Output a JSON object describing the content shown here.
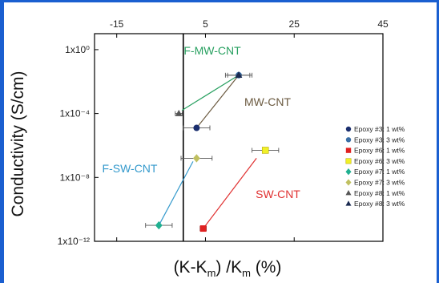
{
  "chart_data": {
    "type": "scatter",
    "xlabel": "(K-K",
    "xlabel_sub": "m",
    "xlabel_mid": ") /K",
    "xlabel_sub2": "m",
    "xlabel_end": " (%)",
    "ylabel": "Conductivity (S/cm)",
    "x_ticks": [
      -15,
      5,
      25,
      45
    ],
    "x_tick_labels": [
      "-15",
      "5",
      "25",
      "45"
    ],
    "y_ticks": [
      0,
      -4,
      -8,
      -12
    ],
    "y_tick_labels": [
      "1x10⁰",
      "1x10⁻⁴",
      "1x10⁻⁸",
      "1x10⁻¹²"
    ],
    "xlim": [
      -20,
      45
    ],
    "ylim_log10": [
      -12,
      1
    ],
    "zero_line_x": 0,
    "series": [
      {
        "name": "Epoxy #3: 1 wt%",
        "marker": "circle",
        "color": "#1a2e6e",
        "x": 3,
        "y_log10": -4.9,
        "xerr": 3
      },
      {
        "name": "Epoxy #3: 3 wt%",
        "marker": "circle",
        "color": "#3a6ea5",
        "x": 12.5,
        "y_log10": -1.6,
        "xerr": 3
      },
      {
        "name": "Epoxy #6: 1 wt%",
        "marker": "square",
        "color": "#e02020",
        "x": 4.5,
        "y_log10": -11.2,
        "xerr": 0.7
      },
      {
        "name": "Epoxy #6: 3 wt%",
        "marker": "square",
        "color": "#f0f028",
        "x": 18.5,
        "y_log10": -6.3,
        "xerr": 3
      },
      {
        "name": "Epoxy #7: 1 wt%",
        "marker": "diamond",
        "color": "#20b090",
        "x": -5.5,
        "y_log10": -11.0,
        "xerr": 3
      },
      {
        "name": "Epoxy #7: 3 wt%",
        "marker": "diamond",
        "color": "#c0c060",
        "x": 3,
        "y_log10": -6.8,
        "xerr": 3.5
      },
      {
        "name": "Epoxy #8: 1 wt%",
        "marker": "triangle",
        "color": "#555555",
        "x": -1,
        "y_log10": -4.0,
        "xerr": 0.8
      },
      {
        "name": "Epoxy #8: 3 wt%",
        "marker": "triangle",
        "color": "#1a2a50",
        "x": 12.5,
        "y_log10": -1.6,
        "xerr": 2.5
      }
    ],
    "annotations": [
      {
        "text": "F-MW-CNT",
        "color": "#28a060",
        "from": [
          12.5,
          -1.6
        ],
        "to": [
          -0.3,
          -3.8
        ]
      },
      {
        "text": "MW-CNT",
        "color": "#6b5a40",
        "from": [
          12.5,
          -1.6
        ],
        "to": [
          3,
          -4.9
        ]
      },
      {
        "text": "F-SW-CNT",
        "color": "#3399cc",
        "from": [
          -5.5,
          -11.0
        ],
        "to": [
          2.2,
          -7.0
        ]
      },
      {
        "text": "SW-CNT",
        "color": "#e03030",
        "from": [
          4.5,
          -11.2
        ],
        "to": [
          16.5,
          -6.8
        ]
      }
    ],
    "legend_position": "right"
  }
}
